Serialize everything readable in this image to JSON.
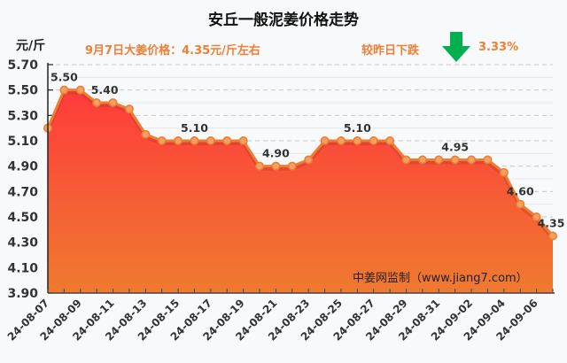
{
  "header": {
    "title": "安丘一般泥姜价格走势",
    "unit": "元/斤",
    "price_note": "9月7日大姜价格：4.35元/斤左右",
    "change_label": "较昨日下跌",
    "change_icon": "down-arrow-icon",
    "change_pct": "3.33%",
    "change_color": "#00b050",
    "accent_color": "#ef7f35"
  },
  "watermark": "中姜网监制（www.jiang7.com）",
  "chart_data": {
    "type": "area",
    "title": "安丘一般泥姜价格走势",
    "xlabel": "",
    "ylabel": "元/斤",
    "ylim": [
      3.9,
      5.7
    ],
    "yticks": [
      "5.70",
      "5.50",
      "5.30",
      "5.10",
      "4.90",
      "4.70",
      "4.50",
      "4.30",
      "4.10",
      "3.90"
    ],
    "grid": true,
    "legend": null,
    "x": [
      "24-08-07",
      "24-08-08",
      "24-08-09",
      "24-08-10",
      "24-08-11",
      "24-08-12",
      "24-08-13",
      "24-08-14",
      "24-08-15",
      "24-08-16",
      "24-08-17",
      "24-08-18",
      "24-08-19",
      "24-08-20",
      "24-08-21",
      "24-08-22",
      "24-08-23",
      "24-08-24",
      "24-08-25",
      "24-08-26",
      "24-08-27",
      "24-08-28",
      "24-08-29",
      "24-08-30",
      "24-08-31",
      "24-09-01",
      "24-09-02",
      "24-09-03",
      "24-09-04",
      "24-09-05",
      "24-09-06",
      "24-09-07"
    ],
    "xtick_labels": [
      "24-08-07",
      "24-08-09",
      "24-08-11",
      "24-08-13",
      "24-08-15",
      "24-08-17",
      "24-08-19",
      "24-08-21",
      "24-08-23",
      "24-08-25",
      "24-08-27",
      "24-08-29",
      "24-08-31",
      "24-09-02",
      "24-09-04",
      "24-09-06"
    ],
    "values": [
      5.2,
      5.5,
      5.5,
      5.4,
      5.4,
      5.35,
      5.15,
      5.1,
      5.1,
      5.1,
      5.1,
      5.1,
      5.1,
      4.9,
      4.9,
      4.9,
      4.95,
      5.1,
      5.1,
      5.1,
      5.1,
      5.1,
      4.95,
      4.95,
      4.95,
      4.95,
      4.95,
      4.95,
      4.85,
      4.6,
      4.5,
      4.35
    ],
    "annotations": [
      {
        "index": 1,
        "text": "5.50"
      },
      {
        "index": 3,
        "text": "5.40"
      },
      {
        "index": 9,
        "text": "5.10"
      },
      {
        "index": 14,
        "text": "4.90"
      },
      {
        "index": 19,
        "text": "5.10"
      },
      {
        "index": 25,
        "text": "4.95"
      },
      {
        "index": 29,
        "text": "4.60"
      },
      {
        "index": 31,
        "text": "4.35"
      }
    ],
    "colors": {
      "line": "#ed7d31",
      "fill_top": "#ff3b3b",
      "fill_bottom": "#ef7a30"
    }
  }
}
